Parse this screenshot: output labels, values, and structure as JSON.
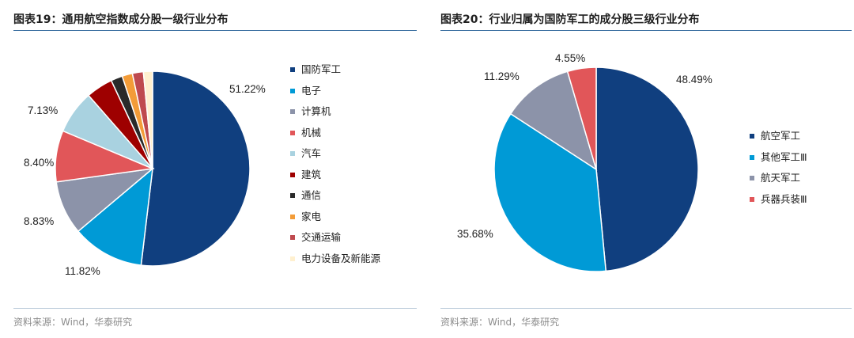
{
  "colors": {
    "rule": "#3a6fa0",
    "palette_left": [
      "#103f7f",
      "#009ad6",
      "#8c93a9",
      "#e15659",
      "#a9d2e0",
      "#9e0000",
      "#2a2a2a",
      "#f39c38",
      "#bf4a4f",
      "#fff0cf"
    ],
    "palette_right": [
      "#103f7f",
      "#009ad6",
      "#8c93a9",
      "#e15659"
    ]
  },
  "figures": [
    {
      "label": "图表19：",
      "title": "通用航空指数成分股一级行业分布",
      "source": "资料来源：Wind，华泰研究"
    },
    {
      "label": "图表20：",
      "title": "行业归属为国防军工的成分股三级行业分布",
      "source": "资料来源：Wind，华泰研究"
    }
  ],
  "chart_data": [
    {
      "type": "pie",
      "title": "通用航空指数成分股一级行业分布",
      "unit": "%",
      "categories": [
        "国防军工",
        "电子",
        "计算机",
        "机械",
        "汽车",
        "建筑",
        "通信",
        "家电",
        "交通运输",
        "电力设备及新能源"
      ],
      "values": [
        51.22,
        11.82,
        8.83,
        8.4,
        7.13,
        4.4,
        1.9,
        1.7,
        1.8,
        1.5
      ],
      "data_labels": [
        "51.22%",
        "11.82%",
        "8.83%",
        "8.40%",
        "7.13%",
        null,
        null,
        null,
        null,
        null
      ],
      "start": "12 o'clock",
      "direction": "clockwise",
      "legend_position": "right"
    },
    {
      "type": "pie",
      "title": "行业归属为国防军工的成分股三级行业分布",
      "unit": "%",
      "categories": [
        "航空军工",
        "其他军工Ⅲ",
        "航天军工",
        "兵器兵装Ⅲ"
      ],
      "values": [
        48.49,
        35.68,
        11.29,
        4.55
      ],
      "data_labels": [
        "48.49%",
        "35.68%",
        "11.29%",
        "4.55%"
      ],
      "start": "12 o'clock",
      "direction": "clockwise",
      "legend_position": "right"
    }
  ]
}
